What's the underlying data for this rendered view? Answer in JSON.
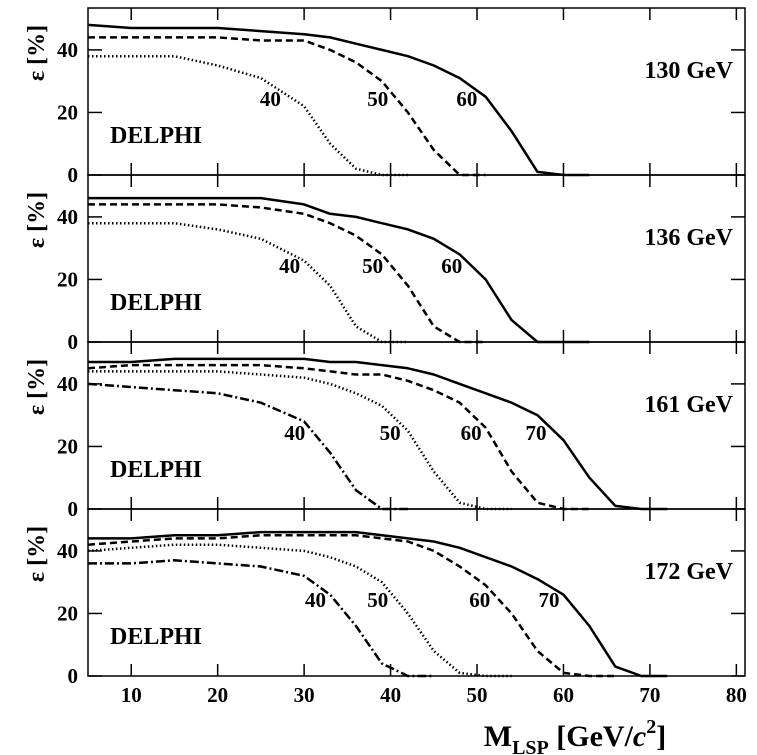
{
  "chart_data": [
    {
      "type": "line",
      "title": "130 GeV",
      "experiment": "DELPHI",
      "ylabel": "ε [%]",
      "xlim": [
        5,
        81
      ],
      "ylim": [
        0,
        53.4
      ],
      "xticks": [
        10,
        20,
        30,
        40,
        50,
        60,
        70,
        80
      ],
      "yticks": [
        0,
        20,
        40
      ],
      "x": [
        5,
        10,
        15,
        20,
        25,
        30,
        33,
        36,
        39,
        42,
        45,
        48,
        51,
        54,
        57,
        60,
        63,
        66,
        69,
        72
      ],
      "series": [
        {
          "name": "60",
          "color": "#000000",
          "dash": "solid",
          "values": [
            48,
            47,
            47,
            47,
            46,
            45,
            44,
            42,
            40,
            38,
            35,
            31,
            25,
            14,
            1,
            0,
            0,
            null,
            null,
            null
          ]
        },
        {
          "name": "50",
          "color": "#000000",
          "dash": "dashed",
          "values": [
            44,
            44,
            44,
            44,
            43,
            43,
            40,
            36,
            30,
            20,
            8,
            0,
            0,
            null,
            null,
            null,
            null,
            null,
            null,
            null
          ]
        },
        {
          "name": "40",
          "color": "#000000",
          "dash": "dotted",
          "values": [
            38,
            38,
            38,
            35,
            31,
            22,
            10,
            2,
            0,
            0,
            null,
            null,
            null,
            null,
            null,
            null,
            null,
            null,
            null,
            null
          ]
        }
      ]
    },
    {
      "type": "line",
      "title": "136 GeV",
      "experiment": "DELPHI",
      "ylabel": "ε [%]",
      "xlim": [
        5,
        81
      ],
      "ylim": [
        0,
        53.4
      ],
      "xticks": [
        10,
        20,
        30,
        40,
        50,
        60,
        70,
        80
      ],
      "yticks": [
        0,
        20,
        40
      ],
      "x": [
        5,
        10,
        15,
        20,
        25,
        30,
        33,
        36,
        39,
        42,
        45,
        48,
        51,
        54,
        57,
        60,
        63,
        66,
        69,
        72
      ],
      "series": [
        {
          "name": "60",
          "color": "#000000",
          "dash": "solid",
          "values": [
            46,
            46,
            46,
            46,
            46,
            44,
            41,
            40,
            38,
            36,
            33,
            28,
            20,
            7,
            0,
            0,
            0,
            null,
            null,
            null
          ]
        },
        {
          "name": "50",
          "color": "#000000",
          "dash": "dashed",
          "values": [
            44,
            44,
            44,
            44,
            43,
            41,
            38,
            34,
            28,
            18,
            5,
            0,
            0,
            null,
            null,
            null,
            null,
            null,
            null,
            null
          ]
        },
        {
          "name": "40",
          "color": "#000000",
          "dash": "dotted",
          "values": [
            38,
            38,
            38,
            36,
            33,
            26,
            18,
            5,
            0,
            0,
            null,
            null,
            null,
            null,
            null,
            null,
            null,
            null,
            null,
            null
          ]
        }
      ]
    },
    {
      "type": "line",
      "title": "161 GeV",
      "experiment": "DELPHI",
      "ylabel": "ε [%]",
      "xlim": [
        5,
        81
      ],
      "ylim": [
        0,
        53.4
      ],
      "xticks": [
        10,
        20,
        30,
        40,
        50,
        60,
        70,
        80
      ],
      "yticks": [
        0,
        20,
        40
      ],
      "x": [
        5,
        10,
        15,
        20,
        25,
        30,
        33,
        36,
        39,
        42,
        45,
        48,
        51,
        54,
        57,
        60,
        63,
        66,
        69,
        72
      ],
      "series": [
        {
          "name": "70",
          "color": "#000000",
          "dash": "solid",
          "values": [
            47,
            47,
            48,
            48,
            48,
            48,
            47,
            47,
            46,
            45,
            43,
            40,
            37,
            34,
            30,
            22,
            10,
            1,
            0,
            0
          ]
        },
        {
          "name": "60",
          "color": "#000000",
          "dash": "dashed",
          "values": [
            45,
            46,
            46,
            46,
            46,
            45,
            44,
            43,
            43,
            41,
            38,
            34,
            26,
            12,
            2,
            0,
            0,
            null,
            null,
            null
          ]
        },
        {
          "name": "50",
          "color": "#000000",
          "dash": "dotted",
          "values": [
            44,
            44,
            44,
            44,
            43,
            42,
            40,
            37,
            33,
            25,
            12,
            2,
            0,
            0,
            null,
            null,
            null,
            null,
            null,
            null
          ]
        },
        {
          "name": "40",
          "color": "#000000",
          "dash": "dashdot",
          "values": [
            40,
            39,
            38,
            37,
            34,
            28,
            18,
            6,
            0,
            0,
            null,
            null,
            null,
            null,
            null,
            null,
            null,
            null,
            null,
            null
          ]
        }
      ]
    },
    {
      "type": "line",
      "title": "172 GeV",
      "experiment": "DELPHI",
      "ylabel": "ε [%]",
      "xlim": [
        5,
        81
      ],
      "ylim": [
        0,
        53.4
      ],
      "xticks": [
        10,
        20,
        30,
        40,
        50,
        60,
        70,
        80
      ],
      "yticks": [
        0,
        20,
        40
      ],
      "xlabel": [
        "M",
        "LSP",
        " [GeV/",
        "c",
        "2",
        "]"
      ],
      "x": [
        5,
        10,
        15,
        20,
        25,
        30,
        33,
        36,
        39,
        42,
        45,
        48,
        51,
        54,
        57,
        60,
        63,
        66,
        69,
        72
      ],
      "series": [
        {
          "name": "70",
          "color": "#000000",
          "dash": "solid",
          "values": [
            44,
            44,
            45,
            45,
            46,
            46,
            46,
            46,
            45,
            44,
            43,
            41,
            38,
            35,
            31,
            26,
            16,
            3,
            0,
            0
          ]
        },
        {
          "name": "60",
          "color": "#000000",
          "dash": "dashed",
          "values": [
            42,
            43,
            44,
            44,
            45,
            45,
            45,
            45,
            44,
            43,
            40,
            35,
            29,
            20,
            8,
            1,
            0,
            0,
            null,
            null
          ]
        },
        {
          "name": "50",
          "color": "#000000",
          "dash": "dotted",
          "values": [
            40,
            41,
            42,
            42,
            41,
            40,
            38,
            35,
            30,
            20,
            8,
            1,
            0,
            0,
            null,
            null,
            null,
            null,
            null,
            null
          ]
        },
        {
          "name": "40",
          "color": "#000000",
          "dash": "dashdot",
          "values": [
            36,
            36,
            37,
            36,
            35,
            32,
            26,
            16,
            4,
            0,
            0,
            null,
            null,
            null,
            null,
            null,
            null,
            null,
            null,
            null
          ]
        }
      ]
    }
  ]
}
